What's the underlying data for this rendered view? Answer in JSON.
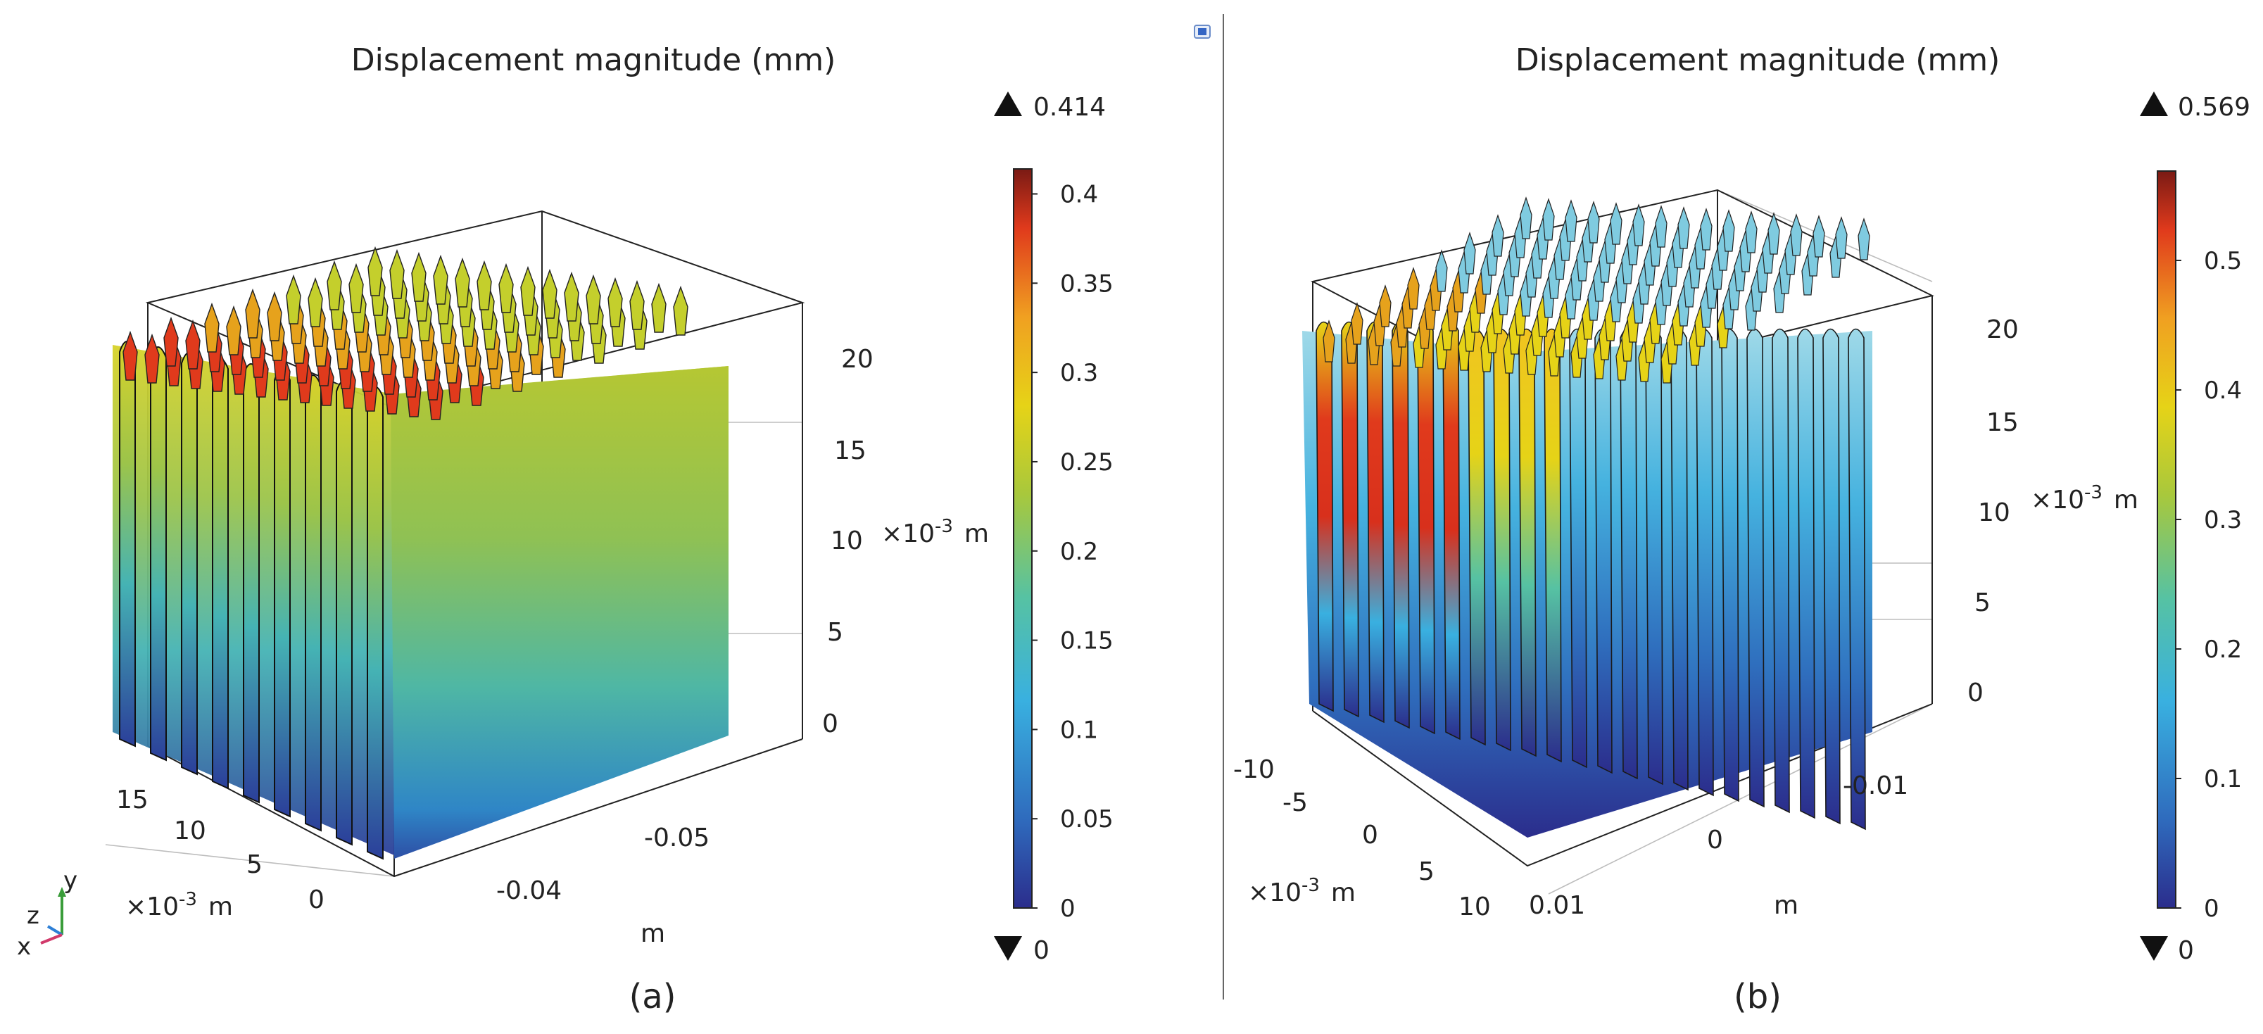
{
  "colors": {
    "colormap": [
      "#2b2d8c",
      "#2f6bbd",
      "#39b0e0",
      "#56c2a3",
      "#a8c83c",
      "#e6d317",
      "#f0a021",
      "#e03a1c",
      "#7a1a14"
    ],
    "axis_frame": "#222222",
    "grid": "#bdbdbd",
    "separator": "#666666"
  },
  "icons": {
    "view_toggle": "window-icon",
    "triad": "axis-triad-icon",
    "max_marker": "triangle-up-icon",
    "min_marker": "triangle-down-icon"
  },
  "panels": [
    {
      "id": "a",
      "title": "Displacement magnitude (mm)",
      "sublabel": "(a)",
      "colorbar": {
        "max_label": "0.414",
        "min_label": "0",
        "vmin": 0,
        "vmax": 0.414,
        "ticks": [
          "0.4",
          "0.35",
          "0.3",
          "0.25",
          "0.2",
          "0.15",
          "0.1",
          "0.05",
          "0"
        ],
        "tick_values": [
          0.4,
          0.35,
          0.3,
          0.25,
          0.2,
          0.15,
          0.1,
          0.05,
          0
        ]
      },
      "axes": {
        "vertical_ticks": [
          "20",
          "15",
          "10",
          "5",
          "0"
        ],
        "vertical_unit": "×10",
        "vertical_unit_exp": "-3",
        "vertical_unit_suffix": "m",
        "depth_ticks": [
          "15",
          "10",
          "5",
          "0"
        ],
        "depth_unit": "×10",
        "depth_unit_exp": "-3",
        "depth_unit_suffix": "m",
        "horizontal_ticks": [
          "-0.04",
          "-0.05"
        ],
        "horizontal_unit": "m"
      },
      "triad": {
        "y": "y",
        "z": "z",
        "x": "x"
      }
    },
    {
      "id": "b",
      "title": "Displacement magnitude (mm)",
      "sublabel": "(b)",
      "colorbar": {
        "max_label": "0.569",
        "min_label": "0",
        "vmin": 0,
        "vmax": 0.569,
        "ticks": [
          "0.5",
          "0.4",
          "0.3",
          "0.2",
          "0.1",
          "0"
        ],
        "tick_values": [
          0.5,
          0.4,
          0.3,
          0.2,
          0.1,
          0
        ]
      },
      "axes": {
        "vertical_ticks": [
          "20",
          "15",
          "10",
          "5",
          "0"
        ],
        "vertical_unit": "×10",
        "vertical_unit_exp": "-3",
        "vertical_unit_suffix": "m",
        "depth_ticks": [
          "-10",
          "-5",
          "0",
          "5",
          "10"
        ],
        "depth_unit": "×10",
        "depth_unit_exp": "-3",
        "depth_unit_suffix": "m",
        "horizontal_ticks": [
          "-0.01",
          "0",
          "0.01"
        ],
        "horizontal_unit": "m"
      }
    }
  ]
}
